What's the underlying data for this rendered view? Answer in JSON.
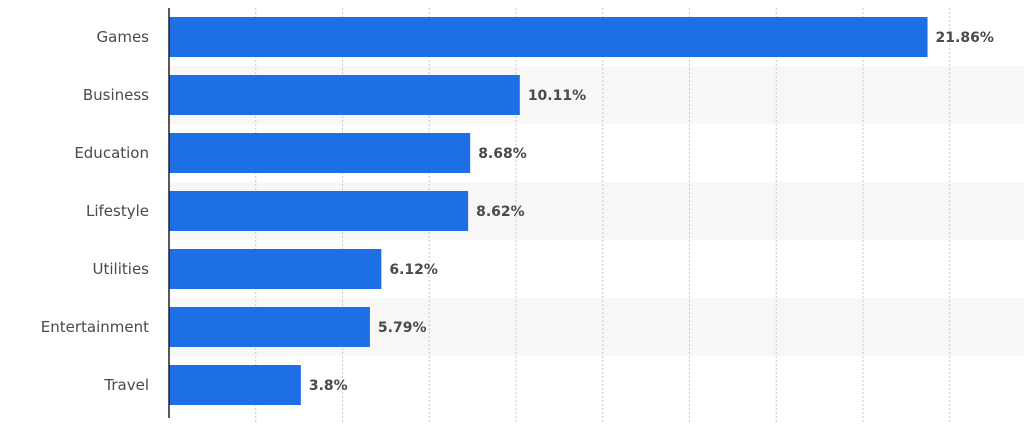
{
  "chart_data": {
    "type": "bar",
    "orientation": "horizontal",
    "categories": [
      "Games",
      "Business",
      "Education",
      "Lifestyle",
      "Utilities",
      "Entertainment",
      "Travel"
    ],
    "values": [
      21.86,
      10.11,
      8.68,
      8.62,
      6.12,
      5.79,
      3.8
    ],
    "value_labels": [
      "21.86%",
      "10.11%",
      "8.68%",
      "8.62%",
      "6.12%",
      "5.79%",
      "3.8%"
    ],
    "title": "",
    "xlabel": "",
    "ylabel": "",
    "xlim": [
      0,
      25
    ],
    "grid": true,
    "alternating_row_bands": true,
    "colors": {
      "bar": "#1e6ee6",
      "band": "#f7f7f7"
    }
  }
}
